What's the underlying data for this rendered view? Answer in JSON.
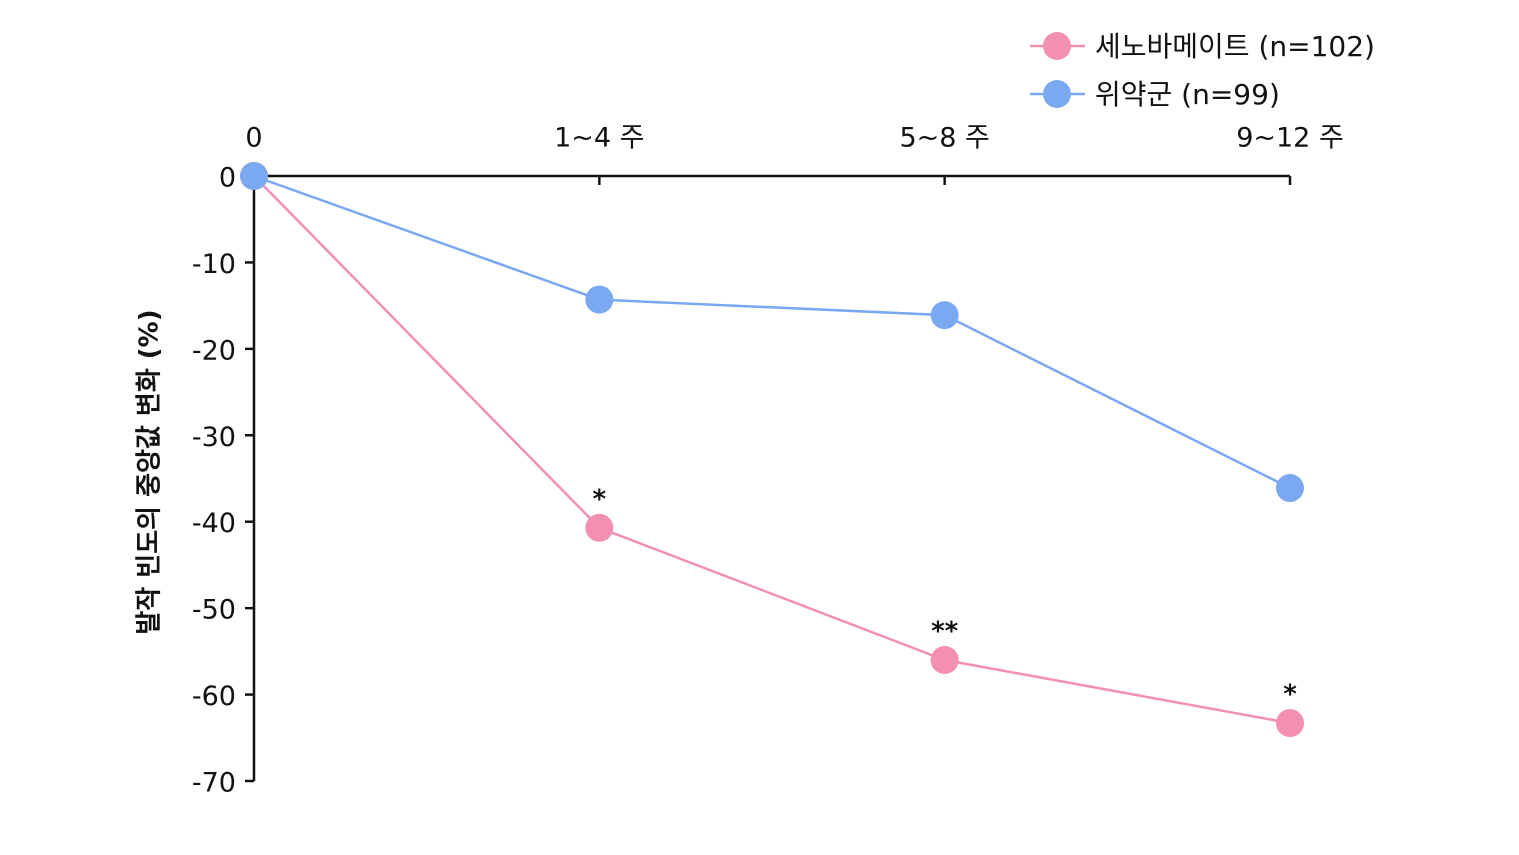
{
  "chart_data": {
    "type": "line",
    "y_label": "발작 빈도의 중앙값 변화 (%)",
    "categories": [
      "0",
      "1~4 주",
      "5~8 주",
      "9~12 주"
    ],
    "series": [
      {
        "name": "세노바메이트 (n=102)",
        "color": "#f48fb4",
        "values": [
          0,
          -40.7,
          -56.0,
          -63.3
        ],
        "annotations": [
          null,
          "*",
          "**",
          "*"
        ]
      },
      {
        "name": "위약군 (n=99)",
        "color": "#7aa9f2",
        "values": [
          0,
          -14.3,
          -16.1,
          -36.1
        ]
      }
    ],
    "ylim": [
      -70,
      0
    ],
    "yticks": [
      0,
      -10,
      -20,
      -30,
      -40,
      -50,
      -60,
      -70
    ],
    "legend": "upper right"
  }
}
